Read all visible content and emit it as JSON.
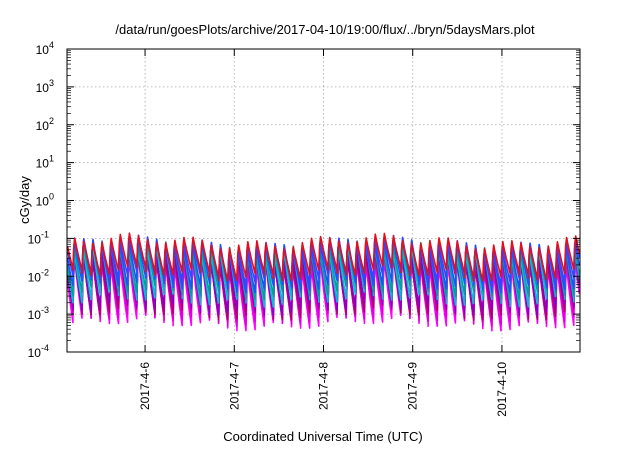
{
  "chart_data": {
    "type": "line",
    "title": "/data/run/goesPlots/archive/2017-04-10/19:00/flux/../bryn/5daysMars.plot",
    "xlabel": "Coordinated Universal Time (UTC)",
    "ylabel": "cGy/day",
    "yscale": "log",
    "ylim": [
      0.0001,
      10000
    ],
    "y_ticks": [
      {
        "value": 0.0001,
        "base": "10",
        "exp": "-4"
      },
      {
        "value": 0.001,
        "base": "10",
        "exp": "-3"
      },
      {
        "value": 0.01,
        "base": "10",
        "exp": "-2"
      },
      {
        "value": 0.1,
        "base": "10",
        "exp": "-1"
      },
      {
        "value": 1,
        "base": "10",
        "exp": "0"
      },
      {
        "value": 10,
        "base": "10",
        "exp": "1"
      },
      {
        "value": 100,
        "base": "10",
        "exp": "2"
      },
      {
        "value": 1000,
        "base": "10",
        "exp": "3"
      },
      {
        "value": 10000,
        "base": "10",
        "exp": "4"
      }
    ],
    "xlim": [
      "2017-04-05 03:00",
      "2017-04-10 21:00"
    ],
    "x_ticks": [
      {
        "value": "2017-04-06 00:00",
        "label": "2017-4-6"
      },
      {
        "value": "2017-04-07 00:00",
        "label": "2017-4-7"
      },
      {
        "value": "2017-04-08 00:00",
        "label": "2017-4-8"
      },
      {
        "value": "2017-04-09 00:00",
        "label": "2017-4-9"
      },
      {
        "value": "2017-04-10 00:00",
        "label": "2017-4-10"
      }
    ],
    "grid": true,
    "cycle_hours": 2.45,
    "series": [
      {
        "color": "#ff00ff",
        "peak": 0.03,
        "trough": 0.0006
      },
      {
        "color": "#dd00dd",
        "peak": 0.035,
        "trough": 0.0008
      },
      {
        "color": "#b0006a",
        "peak": 0.04,
        "trough": 0.0011
      },
      {
        "color": "#8a00c8",
        "peak": 0.05,
        "trough": 0.0015
      },
      {
        "color": "#00c0d0",
        "peak": 0.065,
        "trough": 0.0025
      },
      {
        "color": "#00a0a0",
        "peak": 0.075,
        "trough": 0.004
      },
      {
        "color": "#2050ff",
        "peak": 0.085,
        "trough": 0.006
      },
      {
        "color": "#4040ff",
        "peak": 0.09,
        "trough": 0.009
      },
      {
        "color": "#e01020",
        "peak": 0.1,
        "trough": 0.012
      }
    ]
  }
}
